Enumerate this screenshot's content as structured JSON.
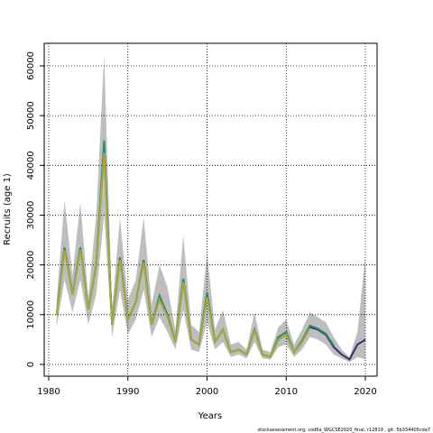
{
  "chart_data": {
    "type": "line",
    "xlabel": "Years",
    "ylabel": "Recruits (age 1)",
    "footer": "stockassessment.org, cod6a_WGCSE2020_final, r12819 , git: 5b334405cda7",
    "x": [
      1981,
      1982,
      1983,
      1984,
      1985,
      1986,
      1987,
      1988,
      1989,
      1990,
      1991,
      1992,
      1993,
      1994,
      1995,
      1996,
      1997,
      1998,
      1999,
      2000,
      2001,
      2002,
      2003,
      2004,
      2005,
      2006,
      2007,
      2008,
      2009,
      2010,
      2011,
      2012,
      2013,
      2014,
      2015,
      2016,
      2017,
      2018,
      2019,
      2020
    ],
    "band": {
      "color": "#bebebe",
      "upper": [
        13000,
        33000,
        18000,
        32500,
        13500,
        30000,
        62000,
        11000,
        29500,
        13000,
        17000,
        29500,
        12000,
        20000,
        15500,
        7000,
        26000,
        8000,
        6500,
        22500,
        7000,
        11000,
        4000,
        4500,
        3000,
        10500,
        3000,
        2500,
        7500,
        9000,
        4000,
        7000,
        10500,
        9500,
        8500,
        5500,
        3000,
        1500,
        6500,
        22000
      ],
      "lower": [
        7500,
        17000,
        10500,
        17000,
        8000,
        14000,
        30000,
        5500,
        15000,
        6000,
        9000,
        15000,
        5500,
        9500,
        6500,
        3000,
        11000,
        3000,
        2500,
        8500,
        3000,
        4500,
        1500,
        2000,
        1200,
        4500,
        1200,
        1000,
        3500,
        4000,
        1500,
        3000,
        5500,
        5000,
        4000,
        2000,
        1200,
        500,
        1500,
        1000
      ]
    },
    "series": [
      {
        "color": "#3b2a6e",
        "values": [
          10000,
          23500,
          14000,
          23500,
          11000,
          20000,
          44000,
          8000,
          21500,
          9000,
          12500,
          21000,
          8000,
          13500,
          10000,
          4500,
          17000,
          5000,
          4000,
          14000,
          4500,
          7000,
          2500,
          3000,
          2000,
          7000,
          2000,
          1500,
          5000,
          6000,
          2500,
          4500,
          7500,
          7000,
          6000,
          3500,
          2000,
          1000,
          4000,
          5000
        ]
      },
      {
        "color": "#2e8b6a",
        "values": [
          10000,
          23500,
          14000,
          23500,
          11000,
          20000,
          45000,
          8000,
          21500,
          9000,
          12500,
          21000,
          8000,
          13800,
          10000,
          4500,
          17200,
          5000,
          4000,
          14500,
          4500,
          7000,
          2500,
          3000,
          2000,
          7000,
          2000,
          1500,
          5500,
          6500,
          2500,
          4800,
          7800,
          7200,
          6200,
          3800,
          null,
          null,
          null,
          null
        ]
      },
      {
        "color": "#a8a838",
        "values": [
          10000,
          23000,
          14000,
          23000,
          11000,
          20000,
          42500,
          8000,
          21000,
          9000,
          12500,
          20500,
          8000,
          13000,
          9500,
          4500,
          16500,
          5000,
          4000,
          13500,
          4500,
          7000,
          2500,
          3000,
          2000,
          6800,
          2000,
          1500,
          5000,
          6000,
          2500,
          4500,
          7300,
          null,
          null,
          null,
          null,
          null,
          null,
          null
        ]
      }
    ],
    "xlim": [
      1979.43,
      2021.48
    ],
    "ylim": [
      -2356,
      64530
    ],
    "xticks": [
      1980,
      1990,
      2000,
      2010,
      2020
    ],
    "yticks": [
      0,
      10000,
      20000,
      30000,
      40000,
      50000,
      60000
    ],
    "grid": true
  }
}
